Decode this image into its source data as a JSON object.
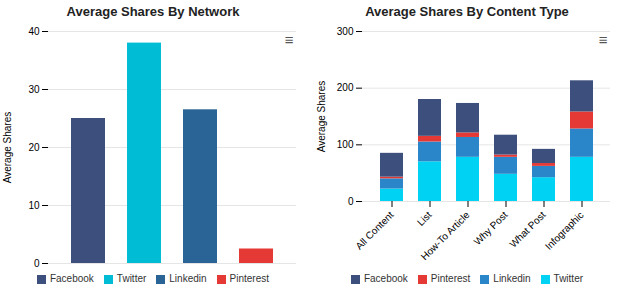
{
  "chart_data": [
    {
      "type": "bar",
      "title": "Average Shares By Network",
      "ylabel": "Average Shares",
      "categories": [
        "Facebook",
        "Twitter",
        "Linkedin",
        "Pinterest"
      ],
      "values": [
        25,
        38,
        26.5,
        2.5
      ],
      "colors": [
        "#3d4f7c",
        "#00bcd4",
        "#2a6496",
        "#e53935"
      ],
      "ylim": [
        0,
        40
      ],
      "yticks": [
        0,
        10,
        20,
        30,
        40
      ],
      "grid": true,
      "legend": "bottom",
      "tick_labels": "y",
      "annotations": [
        "≡"
      ]
    },
    {
      "type": "bar",
      "stacked": true,
      "title": "Average Shares By Content Type",
      "ylabel": "Average Shares",
      "categories": [
        "All Content",
        "List",
        "How-To Article",
        "Why Post",
        "What Post",
        "Infographic"
      ],
      "series": [
        {
          "name": "Twitter",
          "color": "#00d2f3",
          "values": [
            22,
            70,
            78,
            48,
            42,
            78
          ]
        },
        {
          "name": "Linkedin",
          "color": "#2a86c8",
          "values": [
            18,
            35,
            35,
            30,
            20,
            50
          ]
        },
        {
          "name": "Pinterest",
          "color": "#e53935",
          "values": [
            3,
            10,
            8,
            4,
            5,
            30
          ]
        },
        {
          "name": "Facebook",
          "color": "#3d4f7c",
          "values": [
            42,
            65,
            52,
            35,
            25,
            55
          ]
        }
      ],
      "ylim": [
        0,
        300
      ],
      "yticks": [
        0,
        100,
        200,
        300
      ],
      "grid": true,
      "legend": "bottom",
      "annotations": [
        "≡"
      ]
    }
  ]
}
